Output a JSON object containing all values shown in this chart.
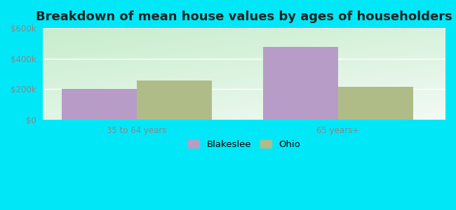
{
  "title": "Breakdown of mean house values by ages of householders",
  "categories": [
    "35 to 64 years",
    "65 years+"
  ],
  "blakeslee_values": [
    200000,
    475000
  ],
  "ohio_values": [
    255000,
    215000
  ],
  "blakeslee_color": "#b89cc8",
  "ohio_color": "#b0bc88",
  "background_outer": "#00e8f8",
  "ylim": [
    0,
    600000
  ],
  "yticks": [
    0,
    200000,
    400000,
    600000
  ],
  "ytick_labels": [
    "$0",
    "$200k",
    "$400k",
    "$600k"
  ],
  "legend_labels": [
    "Blakeslee",
    "Ohio"
  ],
  "bar_width": 0.28,
  "title_fontsize": 13,
  "tick_fontsize": 8.5,
  "legend_fontsize": 9.5
}
